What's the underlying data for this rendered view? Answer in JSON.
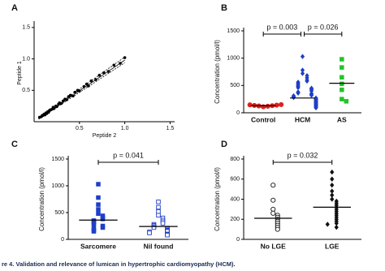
{
  "chart_data": [
    {
      "type": "scatter",
      "panel": "A",
      "xlabel": "Peptide 2",
      "ylabel": "Peptide 1",
      "x": [
        0.06,
        0.08,
        0.09,
        0.1,
        0.11,
        0.12,
        0.13,
        0.14,
        0.15,
        0.16,
        0.17,
        0.18,
        0.2,
        0.21,
        0.22,
        0.24,
        0.25,
        0.27,
        0.28,
        0.3,
        0.32,
        0.34,
        0.36,
        0.38,
        0.4,
        0.43,
        0.45,
        0.48,
        0.5,
        0.55,
        0.58,
        0.6,
        0.63,
        0.68,
        0.72,
        0.77,
        0.82,
        0.88,
        0.95,
        1.0
      ],
      "y": [
        0.07,
        0.08,
        0.1,
        0.1,
        0.12,
        0.11,
        0.14,
        0.13,
        0.16,
        0.15,
        0.18,
        0.19,
        0.2,
        0.23,
        0.21,
        0.25,
        0.24,
        0.28,
        0.3,
        0.29,
        0.33,
        0.36,
        0.35,
        0.4,
        0.42,
        0.41,
        0.47,
        0.5,
        0.49,
        0.56,
        0.6,
        0.57,
        0.65,
        0.67,
        0.74,
        0.78,
        0.8,
        0.9,
        0.93,
        1.02
      ],
      "color": "#000000",
      "fit_x": [
        0.05,
        1.0
      ],
      "fit_y": [
        0.05,
        0.98
      ],
      "ci_upper_y": [
        0.06,
        1.03
      ],
      "ci_lower_y": [
        0.04,
        0.94
      ],
      "xlim": [
        0,
        1.55
      ],
      "ylim": [
        0,
        1.55
      ],
      "xticks": [
        0.5,
        {
          "value": 1,
          "label": "1.0"
        },
        1.5
      ],
      "yticks": [
        0.5,
        {
          "value": 1,
          "label": "1.0"
        },
        1.5
      ]
    },
    {
      "type": "dot",
      "panel": "B",
      "ylabel": "Concentration (pmol/l)",
      "categories": [
        "Control",
        "HCM",
        "AS"
      ],
      "colors": [
        "#e0201b",
        "#1f3fc8",
        "#22c42a"
      ],
      "markers": [
        "circle",
        "diamond",
        "square"
      ],
      "points": [
        [
          110,
          120,
          125,
          130,
          135,
          140,
          145,
          150
        ],
        [
          1030,
          780,
          720,
          680,
          640,
          600,
          580,
          560,
          540,
          520,
          500,
          480,
          460,
          450,
          440,
          420,
          400,
          380,
          360,
          350,
          340,
          320,
          310,
          300,
          290,
          280,
          270,
          260,
          250,
          240,
          230,
          220,
          210,
          200,
          190,
          180,
          170,
          160,
          150,
          140,
          130,
          120,
          110,
          100,
          90
        ],
        [
          980,
          830,
          650,
          530,
          420,
          250,
          210
        ]
      ],
      "means": [
        130,
        270,
        540
      ],
      "annotations": [
        "p = 0.003",
        "p = 0.026"
      ],
      "ylim": [
        0,
        1500
      ],
      "yticks": [
        0,
        500,
        1000,
        1500
      ]
    },
    {
      "type": "dot",
      "panel": "C",
      "ylabel": "Concentration (pmol/l)",
      "categories": [
        "Sarcomere",
        "Nil found"
      ],
      "colors": [
        "#1f3fc8",
        "#1f3fc8"
      ],
      "markers": [
        "square",
        "open-square"
      ],
      "points": [
        [
          1030,
          780,
          650,
          560,
          480,
          440,
          400,
          380,
          350,
          330,
          310,
          280,
          250,
          220,
          200,
          170,
          150
        ],
        [
          700,
          600,
          520,
          450,
          400,
          360,
          330,
          300,
          280,
          260,
          240,
          220,
          210,
          190,
          170,
          160,
          150,
          140,
          120,
          100,
          90,
          80
        ]
      ],
      "means": [
        360,
        240
      ],
      "annotations": [
        "p = 0.041"
      ],
      "ylim": [
        0,
        1500
      ],
      "yticks": [
        0,
        500,
        1000,
        1500
      ]
    },
    {
      "type": "dot",
      "panel": "D",
      "ylabel": "Concentration (pmol/l)",
      "categories": [
        "No LGE",
        "LGE"
      ],
      "colors": [
        "#111111",
        "#111111"
      ],
      "markers": [
        "open-circle",
        "diamond"
      ],
      "points": [
        [
          540,
          390,
          300,
          260,
          240,
          220,
          200,
          180,
          160,
          140,
          120,
          100
        ],
        [
          670,
          600,
          540,
          480,
          440,
          400,
          380,
          360,
          340,
          320,
          300,
          280,
          260,
          240,
          220,
          200,
          180,
          160,
          150,
          120
        ]
      ],
      "means": [
        210,
        320
      ],
      "annotations": [
        "p = 0.032"
      ],
      "ylim": [
        0,
        800
      ],
      "yticks": [
        0,
        200,
        400,
        600,
        800
      ]
    }
  ],
  "caption": "re 4. Validation and relevance of lumican in hypertrophic cardiomyopathy (HCM)."
}
